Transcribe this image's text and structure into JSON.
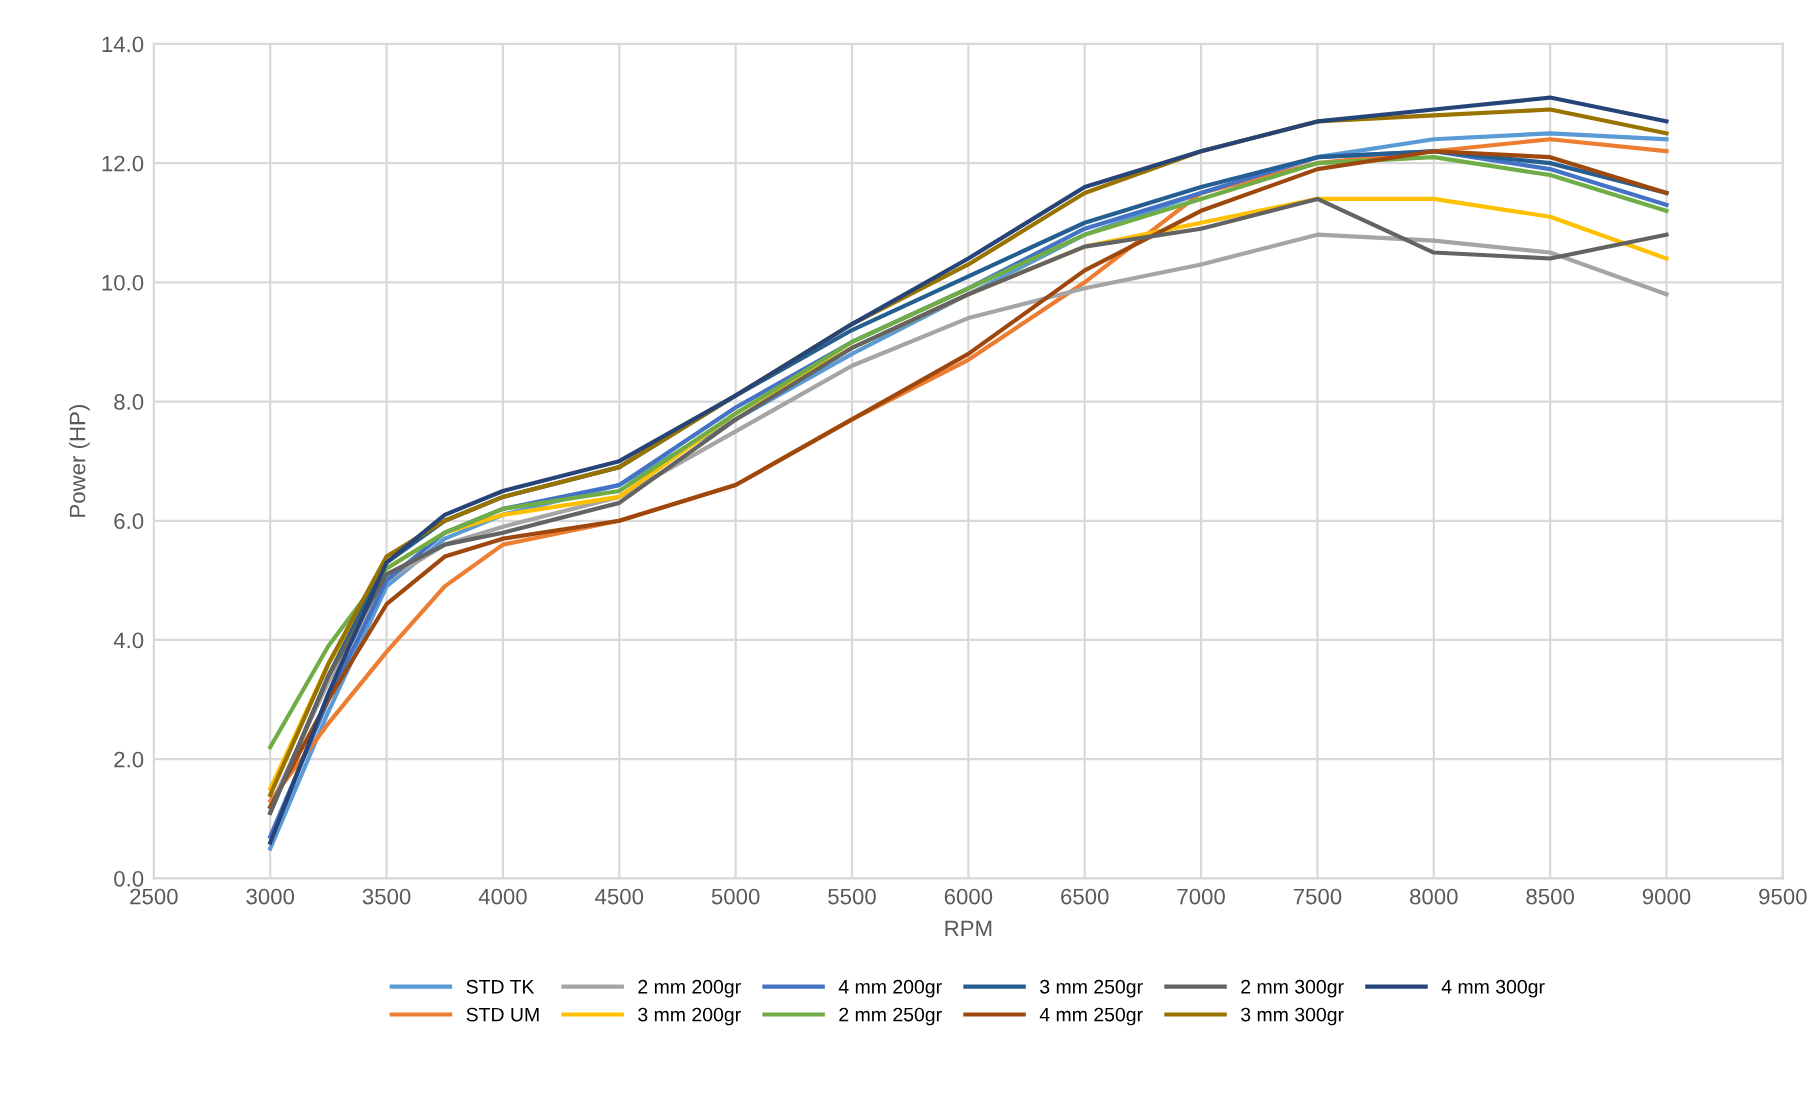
{
  "chart_data": {
    "type": "line",
    "xlabel": "RPM",
    "ylabel": "Power (HP)",
    "x": [
      3000,
      3250,
      3500,
      3750,
      4000,
      4500,
      5000,
      5500,
      6000,
      6500,
      7000,
      7500,
      8000,
      8500,
      9000
    ],
    "xlim": [
      2500,
      9500
    ],
    "xticks": [
      2500,
      3000,
      3500,
      4000,
      4500,
      5000,
      5500,
      6000,
      6500,
      7000,
      7500,
      8000,
      8500,
      9000,
      9500
    ],
    "ylim": [
      0,
      14
    ],
    "yticks": [
      {
        "value": 0,
        "label": "0.0"
      },
      {
        "value": 2,
        "label": "2.0"
      },
      {
        "value": 4,
        "label": "4.0"
      },
      {
        "value": 6,
        "label": "6.0"
      },
      {
        "value": 8,
        "label": "8.0"
      },
      {
        "value": 10,
        "label": "10.0"
      },
      {
        "value": 12,
        "label": "12.0"
      },
      {
        "value": 14,
        "label": "14.0"
      }
    ],
    "grid": true,
    "legend": "bottom",
    "marker": "none",
    "line_style": "solid",
    "series": [
      {
        "name": "STD TK",
        "color": "#5b9bd5",
        "values": [
          0.5,
          2.8,
          4.9,
          5.7,
          6.1,
          6.6,
          7.7,
          8.8,
          9.8,
          10.8,
          11.5,
          12.1,
          12.4,
          12.5,
          12.4
        ]
      },
      {
        "name": "STD UM",
        "color": "#ed7d31",
        "values": [
          1.3,
          2.6,
          3.8,
          4.9,
          5.6,
          6.0,
          6.6,
          7.7,
          8.7,
          10.0,
          11.5,
          12.0,
          12.2,
          12.4,
          12.2
        ]
      },
      {
        "name": "2 mm 200gr",
        "color": "#a5a5a5",
        "values": [
          1.2,
          3.3,
          5.0,
          5.6,
          5.9,
          6.4,
          7.5,
          8.6,
          9.4,
          9.9,
          10.3,
          10.8,
          10.7,
          10.5,
          9.8
        ]
      },
      {
        "name": "3 mm 200gr",
        "color": "#ffc000",
        "values": [
          1.5,
          3.6,
          5.2,
          5.8,
          6.1,
          6.4,
          7.8,
          8.9,
          9.8,
          10.6,
          11.0,
          11.4,
          11.4,
          11.1,
          10.4
        ]
      },
      {
        "name": "4 mm 200gr",
        "color": "#4472c4",
        "values": [
          0.7,
          3.0,
          5.0,
          5.8,
          6.2,
          6.6,
          7.9,
          9.0,
          9.9,
          10.9,
          11.5,
          12.1,
          12.2,
          11.9,
          11.3
        ]
      },
      {
        "name": "2 mm 250gr",
        "color": "#70ad47",
        "values": [
          2.2,
          3.9,
          5.2,
          5.8,
          6.2,
          6.5,
          7.8,
          9.0,
          9.9,
          10.8,
          11.4,
          12.0,
          12.1,
          11.8,
          11.2
        ]
      },
      {
        "name": "3 mm 250gr",
        "color": "#255e91",
        "values": [
          1.1,
          3.4,
          5.3,
          6.0,
          6.4,
          6.9,
          8.1,
          9.2,
          10.1,
          11.0,
          11.6,
          12.1,
          12.2,
          12.0,
          11.5
        ]
      },
      {
        "name": "4 mm 250gr",
        "color": "#9e480e",
        "values": [
          1.2,
          3.0,
          4.6,
          5.4,
          5.7,
          6.0,
          6.6,
          7.7,
          8.8,
          10.2,
          11.2,
          11.9,
          12.2,
          12.1,
          11.5
        ]
      },
      {
        "name": "2 mm 300gr",
        "color": "#636363",
        "values": [
          1.1,
          3.4,
          5.1,
          5.6,
          5.8,
          6.3,
          7.7,
          8.9,
          9.8,
          10.6,
          10.9,
          11.4,
          10.5,
          10.4,
          10.8
        ]
      },
      {
        "name": "3 mm 300gr",
        "color": "#997300",
        "values": [
          1.4,
          3.6,
          5.4,
          6.0,
          6.4,
          6.9,
          8.1,
          9.3,
          10.3,
          11.5,
          12.2,
          12.7,
          12.8,
          12.9,
          12.5
        ]
      },
      {
        "name": "4 mm 300gr",
        "color": "#264478",
        "values": [
          0.6,
          3.1,
          5.3,
          6.1,
          6.5,
          7.0,
          8.1,
          9.3,
          10.4,
          11.6,
          12.2,
          12.7,
          12.9,
          13.1,
          12.7
        ]
      }
    ]
  }
}
